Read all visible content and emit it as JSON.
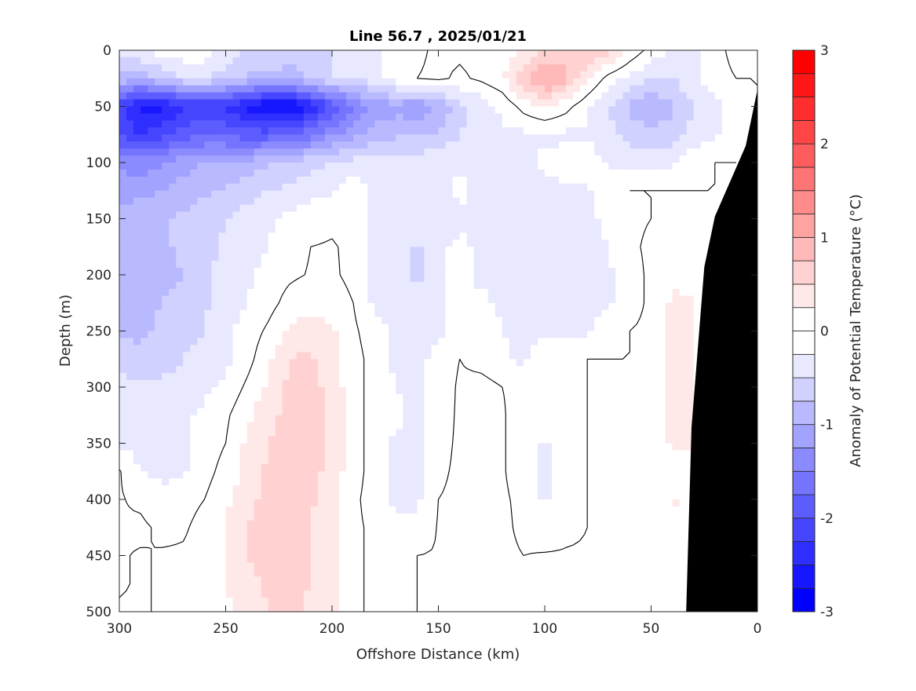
{
  "chart_data": {
    "type": "heatmap",
    "subtype": "filled-contour",
    "title": "Line 56.7 , 2025/01/21",
    "xlabel": "Offshore Distance (km)",
    "ylabel": "Depth (m)",
    "colorbar_label": "Anomaly of Potential Temperature (°C)",
    "xlim": [
      300,
      0
    ],
    "ylim": [
      0,
      500
    ],
    "x_reversed": true,
    "y_reversed": true,
    "xticks": [
      "300",
      "250",
      "200",
      "150",
      "100",
      "50",
      "0"
    ],
    "yticks": [
      "0",
      "50",
      "100",
      "150",
      "200",
      "250",
      "300",
      "350",
      "400",
      "450",
      "500"
    ],
    "colorbar_ticks": [
      "3",
      "2",
      "1",
      "0",
      "-1",
      "-2",
      "-3"
    ],
    "clim": [
      -3,
      3
    ],
    "contour_step": 0.25,
    "contour_line_level": 0,
    "colors": {
      "negative": "#0000ff",
      "zero": "#ffffff",
      "positive": "#ff0000",
      "bathymetry": "#000000",
      "contour_line": "#000000"
    },
    "x": [
      300,
      290,
      280,
      270,
      260,
      250,
      240,
      230,
      220,
      210,
      200,
      190,
      180,
      170,
      160,
      150,
      140,
      130,
      120,
      110,
      100,
      90,
      80,
      70,
      60,
      50,
      40,
      30,
      20,
      10,
      0
    ],
    "depth": [
      0,
      25,
      50,
      75,
      100,
      125,
      150,
      175,
      200,
      225,
      250,
      275,
      300,
      325,
      350,
      375,
      400,
      425,
      450,
      475,
      500
    ],
    "values": [
      [
        -0.4,
        -0.3,
        -0.1,
        -0.1,
        -0.1,
        -0.4,
        -0.5,
        -0.5,
        -0.5,
        -0.5,
        -0.5,
        -0.45,
        -0.3,
        -0.1,
        -0.05,
        0.05,
        0.05,
        0.1,
        0.1,
        0.3,
        0.5,
        0.7,
        0.8,
        0.6,
        0.2,
        -0.1,
        -0.3,
        -0.3,
        -0.1,
        0.1,
        0.3
      ],
      [
        -0.8,
        -0.9,
        -0.7,
        -0.5,
        -0.5,
        -0.6,
        -0.8,
        -0.8,
        -1.0,
        -0.6,
        -0.5,
        -0.5,
        -0.3,
        -0.1,
        0,
        0.05,
        -0.05,
        0.05,
        0.2,
        0.7,
        1.1,
        0.8,
        0.3,
        -0.1,
        -0.3,
        -0.5,
        -0.5,
        -0.3,
        -0.1,
        0,
        0
      ],
      [
        -2.2,
        -2.6,
        -2.6,
        -2.3,
        -2.2,
        -2.3,
        -2.6,
        -2.8,
        -2.8,
        -2.5,
        -2.0,
        -1.5,
        -1.2,
        -1.1,
        -1.2,
        -1.0,
        -0.6,
        -0.4,
        -0.2,
        0.1,
        0.3,
        0.1,
        -0.2,
        -0.5,
        -0.8,
        -1.0,
        -0.8,
        -0.5,
        -0.3,
        -0.2,
        0
      ],
      [
        -2.0,
        -2.3,
        -2.1,
        -1.9,
        -1.8,
        -1.8,
        -1.9,
        -1.9,
        -1.8,
        -1.6,
        -1.3,
        -1.1,
        -0.9,
        -0.8,
        -0.8,
        -0.7,
        -0.5,
        -0.4,
        -0.3,
        -0.3,
        -0.3,
        -0.3,
        -0.3,
        -0.4,
        -0.6,
        -0.7,
        -0.6,
        -0.4,
        -0.3,
        -0.2,
        0
      ],
      [
        -1.3,
        -1.4,
        -1.3,
        -1.1,
        -1.0,
        -1.0,
        -0.9,
        -0.8,
        -0.7,
        -0.6,
        -0.5,
        -0.4,
        -0.35,
        -0.35,
        -0.35,
        -0.3,
        -0.3,
        -0.3,
        -0.3,
        -0.3,
        -0.2,
        -0.15,
        -0.1,
        -0.3,
        -0.4,
        -0.35,
        -0.3,
        -0.1,
        0,
        0,
        0
      ],
      [
        -1.1,
        -1.1,
        -1.0,
        -0.9,
        -0.8,
        -0.7,
        -0.6,
        -0.5,
        -0.45,
        -0.35,
        -0.3,
        -0.1,
        -0.3,
        -0.3,
        -0.35,
        -0.3,
        -0.2,
        -0.3,
        -0.35,
        -0.35,
        -0.3,
        -0.3,
        -0.3,
        -0.1,
        0,
        0,
        0,
        0,
        0,
        0,
        0
      ],
      [
        -0.9,
        -0.8,
        -0.8,
        -0.7,
        -0.6,
        -0.5,
        -0.4,
        -0.3,
        -0.2,
        -0.1,
        -0.05,
        -0.1,
        -0.3,
        -0.35,
        -0.45,
        -0.35,
        -0.3,
        -0.3,
        -0.35,
        -0.35,
        -0.35,
        -0.35,
        -0.3,
        -0.2,
        -0.05,
        0,
        0,
        0,
        0,
        0,
        0
      ],
      [
        -0.9,
        -0.85,
        -0.8,
        -0.7,
        -0.6,
        -0.45,
        -0.35,
        -0.25,
        -0.1,
        0,
        0.02,
        -0.05,
        -0.3,
        -0.3,
        -0.55,
        -0.3,
        -0.2,
        -0.3,
        -0.35,
        -0.35,
        -0.5,
        -0.35,
        -0.3,
        -0.25,
        -0.05,
        0.05,
        0,
        0,
        0,
        0,
        0
      ],
      [
        -0.9,
        -0.85,
        -0.8,
        -0.75,
        -0.55,
        -0.4,
        -0.3,
        -0.15,
        -0.05,
        0.02,
        0.03,
        -0.05,
        -0.3,
        -0.3,
        -0.55,
        -0.3,
        -0.2,
        -0.3,
        -0.3,
        -0.35,
        -0.5,
        -0.3,
        -0.3,
        -0.3,
        -0.1,
        0.05,
        0.2,
        0.1,
        0,
        0,
        0
      ],
      [
        -1.0,
        -0.85,
        -0.75,
        -0.7,
        -0.55,
        -0.35,
        -0.25,
        -0.1,
        0.1,
        0.2,
        0.1,
        0,
        -0.3,
        -0.3,
        -0.5,
        -0.3,
        -0.2,
        -0.2,
        -0.3,
        -0.3,
        -0.35,
        -0.3,
        -0.3,
        -0.3,
        -0.1,
        0.05,
        0.3,
        0.3,
        0,
        0,
        0
      ],
      [
        -0.8,
        -0.8,
        -0.7,
        -0.6,
        -0.5,
        -0.3,
        -0.15,
        0.05,
        0.3,
        0.35,
        0.3,
        0.05,
        -0.15,
        -0.3,
        -0.3,
        -0.3,
        -0.1,
        -0.05,
        -0.25,
        -0.3,
        -0.3,
        -0.3,
        -0.3,
        -0.1,
        0,
        0.05,
        0.3,
        0.3,
        0,
        0,
        0
      ],
      [
        -0.55,
        -0.7,
        -0.6,
        -0.5,
        -0.4,
        -0.3,
        -0.1,
        0.2,
        0.5,
        0.55,
        0.35,
        0.1,
        -0.1,
        -0.3,
        -0.3,
        -0.2,
        0,
        -0.1,
        -0.2,
        -0.3,
        -0.1,
        -0.1,
        0,
        0,
        0,
        0.05,
        0.3,
        0.3,
        0,
        0,
        0
      ],
      [
        -0.45,
        -0.45,
        -0.45,
        -0.4,
        -0.3,
        -0.2,
        0.05,
        0.3,
        0.55,
        0.6,
        0.4,
        0.1,
        -0.1,
        -0.25,
        -0.3,
        -0.2,
        0.05,
        0.1,
        0,
        -0.05,
        -0.05,
        -0.05,
        0,
        0,
        0,
        0.1,
        0.3,
        0.3,
        0,
        0,
        0
      ],
      [
        -0.4,
        -0.35,
        -0.35,
        -0.3,
        -0.2,
        -0.05,
        0.2,
        0.4,
        0.6,
        0.6,
        0.4,
        0.1,
        -0.1,
        -0.2,
        -0.3,
        -0.15,
        0.05,
        0.1,
        0.02,
        -0.1,
        -0.1,
        -0.05,
        0,
        0,
        0,
        0.1,
        0.3,
        0.3,
        0,
        0,
        0
      ],
      [
        -0.3,
        -0.35,
        -0.3,
        -0.3,
        -0.15,
        0,
        0.3,
        0.5,
        0.6,
        0.6,
        0.4,
        0.1,
        -0.1,
        -0.3,
        -0.3,
        -0.1,
        0.05,
        0.1,
        0.02,
        -0.1,
        -0.3,
        -0.1,
        0,
        0,
        0,
        0.05,
        0.3,
        0.3,
        0,
        0,
        0
      ],
      [
        0.02,
        -0.25,
        -0.3,
        -0.3,
        -0.1,
        0.1,
        0.3,
        0.55,
        0.6,
        0.6,
        0.4,
        0.1,
        -0.1,
        -0.3,
        -0.3,
        -0.05,
        0.05,
        0.1,
        0.02,
        -0.1,
        -0.3,
        -0.1,
        0,
        0,
        0.05,
        0.05,
        0.1,
        0.1,
        0,
        0,
        0
      ],
      [
        0.02,
        -0.05,
        -0.2,
        -0.05,
        0,
        0.2,
        0.4,
        0.6,
        0.6,
        0.55,
        0.35,
        0.05,
        -0.1,
        -0.3,
        -0.3,
        0,
        0.05,
        0.1,
        0.03,
        -0.05,
        -0.3,
        -0.1,
        0,
        0,
        0.05,
        0.05,
        0.3,
        0.1,
        0,
        0,
        0
      ],
      [
        0.02,
        0.05,
        -0.05,
        -0.02,
        0.05,
        0.25,
        0.5,
        0.6,
        0.6,
        0.5,
        0.3,
        0.05,
        -0.05,
        -0.2,
        -0.2,
        0.02,
        0.05,
        0.1,
        0.05,
        -0.05,
        -0.15,
        -0.05,
        0,
        0,
        0,
        0.05,
        0.2,
        0.05,
        0,
        0,
        0
      ],
      [
        0.02,
        -0.02,
        0.02,
        0.02,
        0.05,
        0.25,
        0.5,
        0.6,
        0.6,
        0.5,
        0.3,
        0.05,
        -0.05,
        -0.1,
        0,
        0.02,
        0.05,
        0.1,
        0.05,
        0,
        0.02,
        0.02,
        0.02,
        0.02,
        0.02,
        0.02,
        0.02,
        0.02,
        0,
        0,
        0
      ],
      [
        0.02,
        -0.02,
        0.02,
        0.02,
        0.05,
        0.25,
        0.4,
        0.55,
        0.6,
        0.5,
        0.3,
        0.05,
        -0.05,
        -0.05,
        0,
        0.02,
        0.05,
        0.1,
        0.05,
        0,
        0.02,
        0.02,
        0.02,
        0.02,
        0.02,
        0.02,
        0.02,
        0.02,
        0,
        0,
        0
      ],
      [
        -0.02,
        -0.02,
        0.02,
        0.02,
        0.05,
        0.2,
        0.3,
        0.5,
        0.55,
        0.45,
        0.3,
        0.05,
        -0.05,
        -0.02,
        0,
        0.02,
        0.05,
        0.1,
        0.05,
        0,
        0.02,
        0.02,
        0.02,
        0.02,
        0.02,
        0.02,
        0.02,
        0.02,
        0,
        0,
        0
      ]
    ],
    "bathymetry": [
      [
        0,
        35
      ],
      [
        5.5,
        85
      ],
      [
        20,
        148
      ],
      [
        25,
        193
      ],
      [
        31,
        336
      ],
      [
        33.5,
        500
      ],
      [
        0,
        500
      ]
    ]
  }
}
